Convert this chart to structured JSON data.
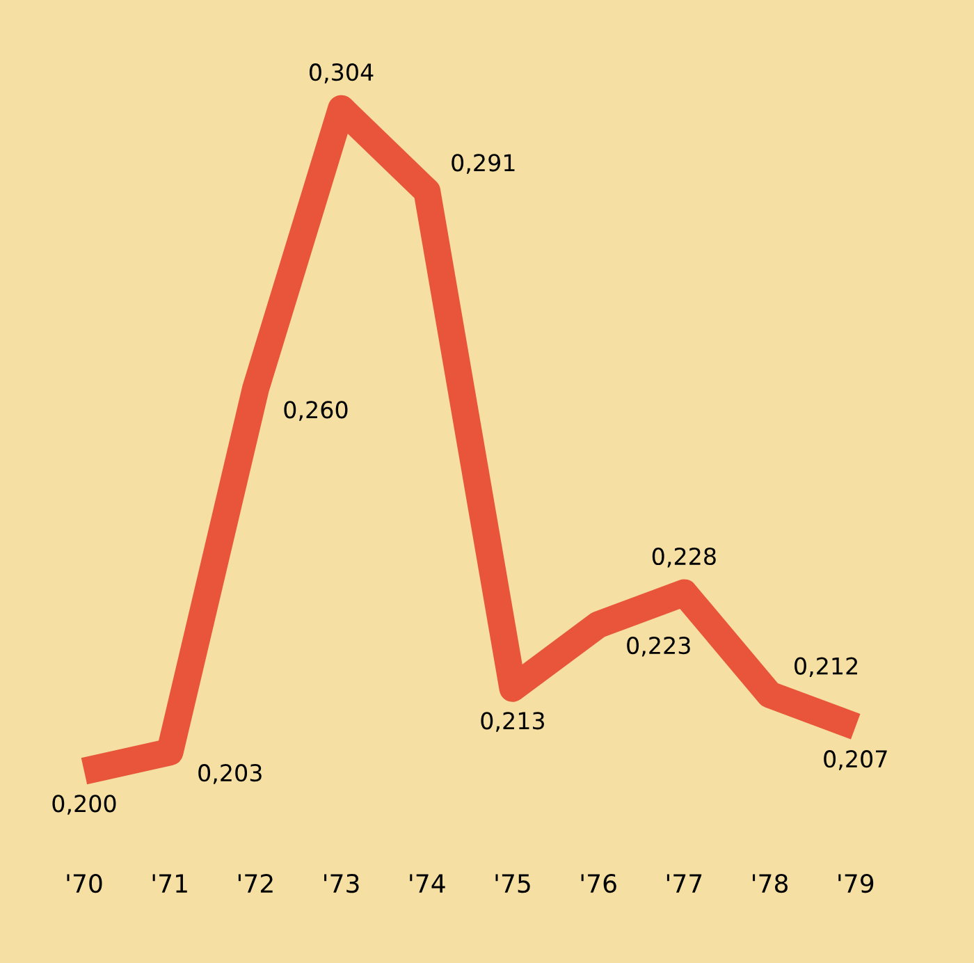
{
  "chart_data": {
    "type": "line",
    "categories": [
      "'70",
      "'71",
      "'72",
      "'73",
      "'74",
      "'75",
      "'76",
      "'77",
      "'78",
      "'79"
    ],
    "values": [
      0.2,
      0.203,
      0.26,
      0.304,
      0.291,
      0.213,
      0.223,
      0.228,
      0.212,
      0.207
    ],
    "value_labels": [
      "0,200",
      "0,203",
      "0,260",
      "0,304",
      "0,291",
      "0,213",
      "0,223",
      "0,228",
      "0,212",
      "0,207"
    ],
    "color": "#e8553a",
    "tick_labels": "x",
    "grid": false,
    "marker": "none",
    "line_style": "solid"
  }
}
